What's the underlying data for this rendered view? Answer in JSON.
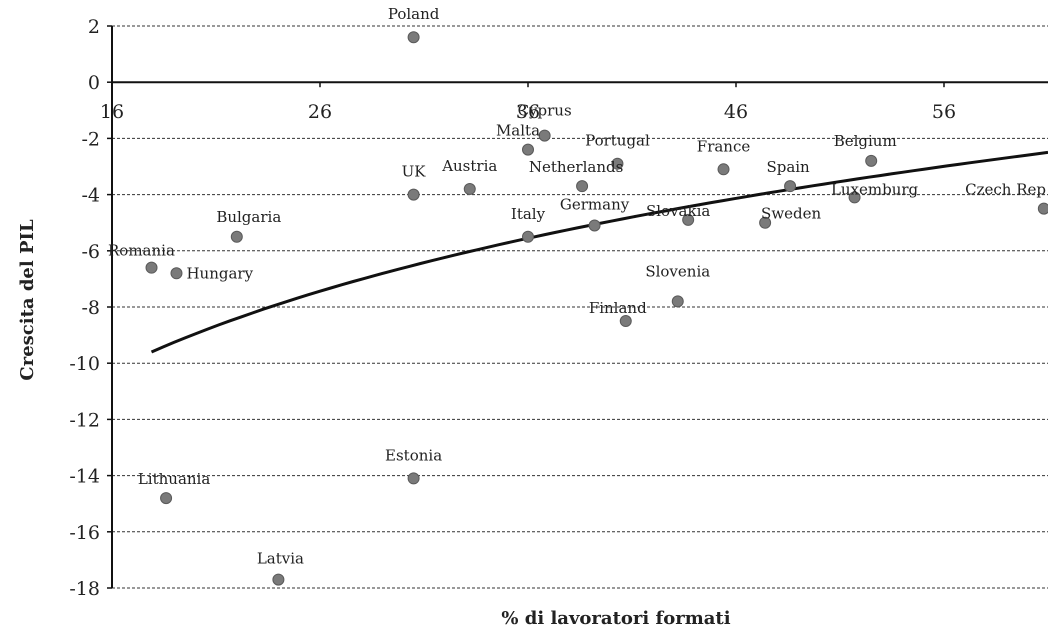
{
  "chart_data": {
    "type": "scatter",
    "title": "",
    "xlabel": "% di lavoratori formati",
    "ylabel": "Crescita del PIL",
    "xlim": [
      16,
      61
    ],
    "ylim": [
      -18,
      2
    ],
    "x_ticks": [
      "16",
      "26",
      "36",
      "46",
      "56"
    ],
    "y_ticks": [
      "2",
      "0",
      "-2",
      "-4",
      "-6",
      "-8",
      "-10",
      "-12",
      "-14",
      "-16",
      "-18"
    ],
    "grid": "horizontal dashed",
    "series": [
      {
        "points": [
          {
            "label": "Poland",
            "x": 30.5,
            "y": 1.6
          },
          {
            "label": "Cyprus",
            "x": 36.8,
            "y": -1.9
          },
          {
            "label": "Malta",
            "x": 36.0,
            "y": -2.4
          },
          {
            "label": "Portugal",
            "x": 40.3,
            "y": -2.9
          },
          {
            "label": "France",
            "x": 45.4,
            "y": -3.1
          },
          {
            "label": "Belgium",
            "x": 52.5,
            "y": -2.8
          },
          {
            "label": "UK",
            "x": 30.5,
            "y": -4.0
          },
          {
            "label": "Austria",
            "x": 33.2,
            "y": -3.8
          },
          {
            "label": "Netherlands",
            "x": 38.6,
            "y": -3.7
          },
          {
            "label": "Spain",
            "x": 48.6,
            "y": -3.7
          },
          {
            "label": "Luxemburg",
            "x": 51.7,
            "y": -4.1
          },
          {
            "label": "Czech Rep",
            "x": 60.8,
            "y": -4.5
          },
          {
            "label": "Bulgaria",
            "x": 22.0,
            "y": -5.5
          },
          {
            "label": "Italy",
            "x": 36.0,
            "y": -5.5
          },
          {
            "label": "Germany",
            "x": 39.2,
            "y": -5.1
          },
          {
            "label": "Slovakia",
            "x": 43.7,
            "y": -4.9
          },
          {
            "label": "Sweden",
            "x": 47.4,
            "y": -5.0
          },
          {
            "label": "Romania",
            "x": 17.9,
            "y": -6.6
          },
          {
            "label": "Hungary",
            "x": 19.1,
            "y": -6.8
          },
          {
            "label": "Slovenia",
            "x": 43.2,
            "y": -7.8
          },
          {
            "label": "Finland",
            "x": 40.7,
            "y": -8.5
          },
          {
            "label": "Lithuania",
            "x": 18.6,
            "y": -14.8
          },
          {
            "label": "Estonia",
            "x": 30.5,
            "y": -14.1
          },
          {
            "label": "Latvia",
            "x": 24.0,
            "y": -17.7
          }
        ]
      }
    ],
    "trendline": {
      "type": "logarithmic",
      "from": {
        "x": 17.9,
        "y": -9.6
      },
      "to": {
        "x": 61.0,
        "y": -2.5
      }
    },
    "colors": {
      "point": "#7a7a7a",
      "trend": "#111111",
      "grid": "#333333",
      "axis": "#111111"
    }
  }
}
